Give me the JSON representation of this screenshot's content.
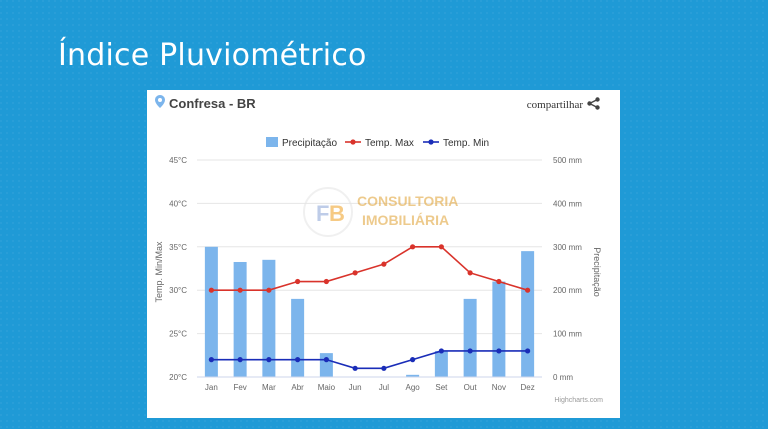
{
  "slide": {
    "title": "Índice Pluviométrico"
  },
  "card": {
    "location": "Confresa - BR",
    "share_label": "compartilhar",
    "credit": "Highcharts.com"
  },
  "watermark": {
    "line1": "CONSULTORIA",
    "line2": "IMOBILIÁRIA"
  },
  "colors": {
    "precip": "#7cb5ec",
    "tmax": "#d9332b",
    "tmin": "#1a2db8",
    "grid": "#e6e6e6",
    "text": "#666666"
  },
  "chart_data": {
    "type": "bar",
    "categories": [
      "Jan",
      "Fev",
      "Mar",
      "Abr",
      "Maio",
      "Jun",
      "Jul",
      "Ago",
      "Set",
      "Out",
      "Nov",
      "Dez"
    ],
    "series": [
      {
        "name": "Precipitação",
        "type": "bar",
        "axis": "right",
        "values": [
          300,
          265,
          270,
          180,
          55,
          0,
          0,
          5,
          60,
          180,
          220,
          290
        ]
      },
      {
        "name": "Temp. Max",
        "type": "line",
        "axis": "left",
        "values": [
          30,
          30,
          30,
          31,
          31,
          32,
          33,
          35,
          35,
          32,
          31,
          30
        ]
      },
      {
        "name": "Temp. Min",
        "type": "line",
        "axis": "left",
        "values": [
          22,
          22,
          22,
          22,
          22,
          21,
          21,
          22,
          23,
          23,
          23,
          23
        ]
      }
    ],
    "y_left": {
      "label": "Temp. Min/Max",
      "ylim": [
        20,
        45
      ],
      "ticks": [
        "45°C",
        "40°C",
        "35°C",
        "30°C",
        "25°C",
        "20°C"
      ]
    },
    "y_right": {
      "label": "Precipitação",
      "ylim": [
        0,
        500
      ],
      "ticks": [
        "500 mm",
        "400 mm",
        "300 mm",
        "200 mm",
        "100 mm",
        "0 mm"
      ]
    },
    "grid": true,
    "legend": "top-center"
  }
}
